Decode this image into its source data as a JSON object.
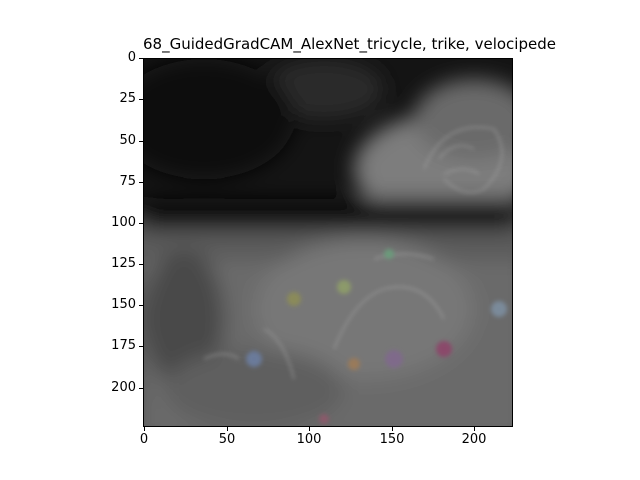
{
  "figure": {
    "title": "68_GuidedGradCAM_AlexNet_tricycle, trike, velocipede",
    "image_description_icon": "guided-gradcam-heatmap-image"
  },
  "axes": {
    "x_ticks": [
      "0",
      "50",
      "100",
      "150",
      "200"
    ],
    "y_ticks": [
      "0",
      "25",
      "50",
      "75",
      "100",
      "125",
      "150",
      "175",
      "200"
    ],
    "x_range": [
      0,
      224
    ],
    "y_range": [
      0,
      224
    ]
  },
  "colors": {
    "background": "#ffffff",
    "frame": "#000000"
  }
}
